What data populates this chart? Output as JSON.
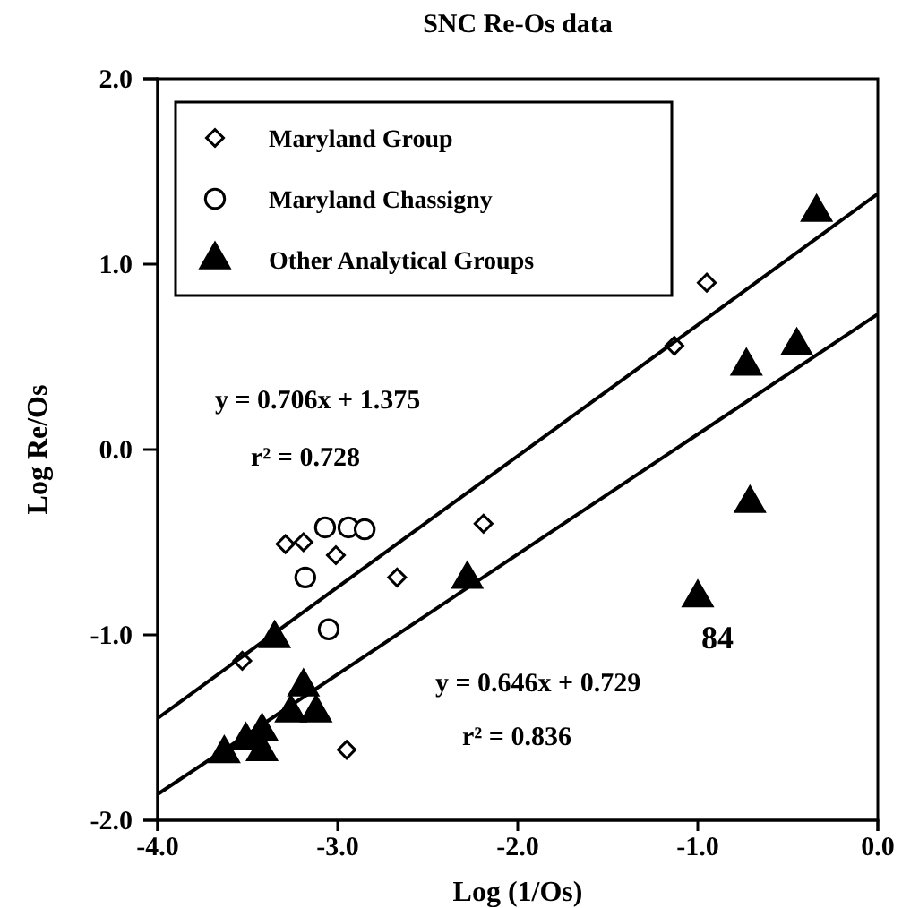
{
  "chart_data": {
    "type": "scatter",
    "title": "SNC Re-Os data",
    "xlabel": "Log (1/Os)",
    "ylabel": "Log Re/Os",
    "xlim": [
      -4,
      0
    ],
    "xticks": [
      {
        "value": -4,
        "label": "-4.0"
      },
      {
        "value": -3,
        "label": "-3.0"
      },
      {
        "value": -2,
        "label": "-2.0"
      },
      {
        "value": -1,
        "label": "-1.0"
      },
      {
        "value": 0,
        "label": "0.0"
      }
    ],
    "ylim": [
      -2,
      2
    ],
    "yticks": [
      {
        "value": -2,
        "label": "-2.0"
      },
      {
        "value": -1,
        "label": "-1.0"
      },
      {
        "value": 0,
        "label": "0.0"
      },
      {
        "value": 1,
        "label": "1.0"
      },
      {
        "value": 2,
        "label": "2.0"
      }
    ],
    "grid": false,
    "legend": "top left",
    "series": [
      {
        "name": "Maryland Group",
        "marker": "diamond",
        "color": "#000000",
        "x": [
          -3.53,
          -3.29,
          -3.19,
          -3.01,
          -2.95,
          -2.67,
          -2.19,
          -1.13,
          -0.95
        ],
        "values": [
          -1.14,
          -0.51,
          -0.5,
          -0.57,
          -1.62,
          -0.69,
          -0.4,
          0.56,
          0.9
        ]
      },
      {
        "name": "Maryland Chassigny",
        "marker": "circle",
        "color": "#000000",
        "x": [
          -3.18,
          -3.07,
          -3.05,
          -2.94,
          -2.85
        ],
        "values": [
          -0.69,
          -0.42,
          -0.97,
          -0.42,
          -0.43
        ]
      },
      {
        "name": "Other Analytical Groups",
        "marker": "triangle",
        "color": "#000000",
        "x": [
          -3.63,
          -3.51,
          -3.42,
          -3.42,
          -3.35,
          -3.26,
          -3.19,
          -3.12,
          -2.28,
          -1.0,
          -0.73,
          -0.71,
          -0.45,
          -0.34
        ],
        "values": [
          -1.64,
          -1.57,
          -1.52,
          -1.63,
          -1.02,
          -1.42,
          -1.28,
          -1.42,
          -0.7,
          -0.8,
          0.45,
          -0.29,
          0.56,
          1.28
        ]
      },
      {
        "type": "line",
        "marker": "none",
        "color": "#000000",
        "x": [
          -4,
          0
        ],
        "values": [
          -1.45,
          1.38
        ]
      },
      {
        "type": "line",
        "marker": "none",
        "color": "#000000",
        "x": [
          -4,
          0
        ],
        "values": [
          -1.86,
          0.73
        ]
      }
    ],
    "annotations": [
      "y = 0.706x + 1.375",
      "r² = 0.728",
      "y = 0.646x + 0.729",
      "r² = 0.836",
      {
        "text": "84",
        "x": -1.0,
        "y": -0.8
      }
    ]
  }
}
